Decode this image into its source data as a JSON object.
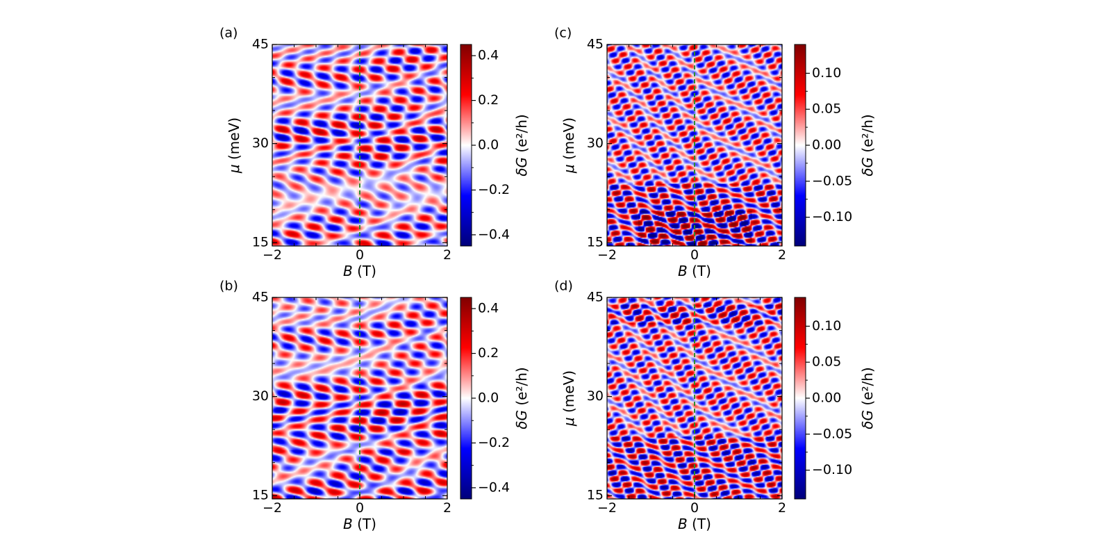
{
  "figure": {
    "colors": {
      "negative": "#00007a",
      "negative_mid": "#0000ff",
      "zero": "#ffffff",
      "positive_mid": "#ff0000",
      "positive": "#800000",
      "guide_line": "#2e8b2e"
    }
  },
  "chart_data": [
    {
      "id": "a",
      "panel_label": "(a)",
      "type": "heatmap",
      "xlabel_var": "B",
      "xlabel_unit": " (T)",
      "ylabel_var": "μ",
      "ylabel_unit": " (meV)",
      "show_ylabel": true,
      "xlim": [
        -2,
        2
      ],
      "ylim": [
        14.5,
        45
      ],
      "xticks": [
        -2,
        0,
        2
      ],
      "xtick_labels": [
        "−2",
        "0",
        "2"
      ],
      "yticks": [
        15,
        30,
        45
      ],
      "ytick_labels": [
        "15",
        "30",
        "45"
      ],
      "guide_line_x": 0,
      "colorbar": {
        "label_var": "δG",
        "label_unit": " (e²/h)",
        "range": [
          -0.45,
          0.45
        ],
        "ticks": [
          -0.4,
          -0.2,
          0.0,
          0.2,
          0.4
        ],
        "tick_labels": [
          "−0.4",
          "−0.2",
          "0.0",
          "0.2",
          "0.4"
        ]
      }
    },
    {
      "id": "b",
      "panel_label": "(b)",
      "type": "heatmap",
      "xlabel_var": "B",
      "xlabel_unit": " (T)",
      "ylabel_var": "μ",
      "ylabel_unit": " (meV)",
      "show_ylabel": false,
      "xlim": [
        -2,
        2
      ],
      "ylim": [
        14.5,
        45
      ],
      "xticks": [
        -2,
        0,
        2
      ],
      "xtick_labels": [
        "−2",
        "0",
        "2"
      ],
      "yticks": [
        15,
        30,
        45
      ],
      "ytick_labels": [
        "15",
        "30",
        "45"
      ],
      "guide_line_x": 0,
      "colorbar": {
        "label_var": "δG",
        "label_unit": " (e²/h)",
        "range": [
          -0.45,
          0.45
        ],
        "ticks": [
          -0.4,
          -0.2,
          0.0,
          0.2,
          0.4
        ],
        "tick_labels": [
          "−0.4",
          "−0.2",
          "0.0",
          "0.2",
          "0.4"
        ]
      }
    },
    {
      "id": "c",
      "panel_label": "(c)",
      "type": "heatmap",
      "xlabel_var": "B",
      "xlabel_unit": " (T)",
      "ylabel_var": "μ",
      "ylabel_unit": " (meV)",
      "show_ylabel": true,
      "xlim": [
        -2,
        2
      ],
      "ylim": [
        14.5,
        45
      ],
      "xticks": [
        -2,
        0,
        2
      ],
      "xtick_labels": [
        "−2",
        "0",
        "2"
      ],
      "yticks": [
        15,
        30,
        45
      ],
      "ytick_labels": [
        "15",
        "30",
        "45"
      ],
      "guide_line_x": 0,
      "colorbar": {
        "label_var": "δG",
        "label_unit": " (e²/h)",
        "range": [
          -0.14,
          0.14
        ],
        "ticks": [
          -0.1,
          -0.05,
          0.0,
          0.05,
          0.1
        ],
        "tick_labels": [
          "−0.10",
          "−0.05",
          "0.00",
          "0.05",
          "0.10"
        ]
      }
    },
    {
      "id": "d",
      "panel_label": "(d)",
      "type": "heatmap",
      "xlabel_var": "B",
      "xlabel_unit": " (T)",
      "ylabel_var": "μ",
      "ylabel_unit": " (meV)",
      "show_ylabel": true,
      "xlim": [
        -2,
        2
      ],
      "ylim": [
        14.5,
        45
      ],
      "xticks": [
        -2,
        0,
        2
      ],
      "xtick_labels": [
        "−2",
        "0",
        "2"
      ],
      "yticks": [
        15,
        30,
        45
      ],
      "ytick_labels": [
        "15",
        "30",
        "45"
      ],
      "guide_line_x": 0,
      "colorbar": {
        "label_var": "δG",
        "label_unit": " (e²/h)",
        "range": [
          -0.14,
          0.14
        ],
        "ticks": [
          -0.1,
          -0.05,
          0.0,
          0.05,
          0.1
        ],
        "tick_labels": [
          "−0.10",
          "−0.05",
          "0.00",
          "0.05",
          "0.10"
        ]
      }
    }
  ]
}
